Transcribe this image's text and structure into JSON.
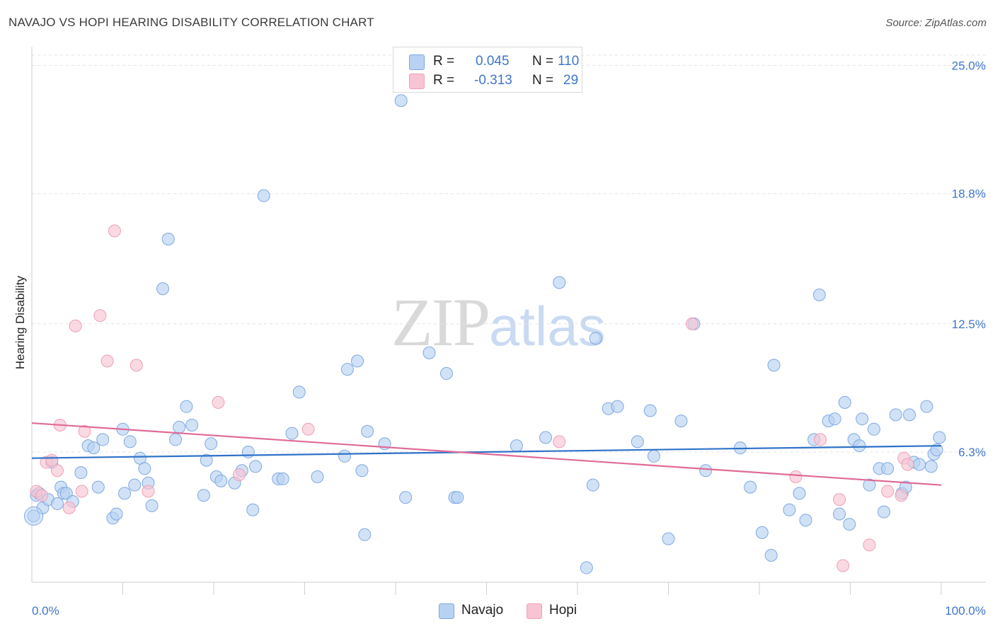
{
  "title": "NAVAJO VS HOPI HEARING DISABILITY CORRELATION CHART",
  "source": "Source: ZipAtlas.com",
  "watermark": {
    "zip": "ZIP",
    "atlas": "atlas"
  },
  "legend": {
    "navajo": {
      "r_label": "R =",
      "r_value": "0.045",
      "n_label": "N =",
      "n_value": "110"
    },
    "hopi": {
      "r_label": "R =",
      "r_value": "-0.313",
      "n_label": "N =",
      "n_value": "29"
    }
  },
  "bottom_legend": {
    "navajo": "Navajo",
    "hopi": "Hopi"
  },
  "colors": {
    "navajo_fill": "#b9d2f3",
    "navajo_stroke": "#7fa8e0",
    "navajo_line": "#2f72c9",
    "hopi_fill": "#f8c4d3",
    "hopi_stroke": "#eda0b6",
    "hopi_line": "#e06b97",
    "grid": "#e3e3e3",
    "tick_text": "#3e76c9"
  },
  "chart_data": {
    "type": "scatter",
    "title": "NAVAJO VS HOPI HEARING DISABILITY CORRELATION CHART",
    "xlabel": "",
    "ylabel": "Hearing Disability",
    "x_tick_labels": [
      "0.0%",
      "100.0%"
    ],
    "y_tick_labels": [
      "6.3%",
      "12.5%",
      "18.8%",
      "25.0%"
    ],
    "y_ticks": [
      6.3,
      12.5,
      18.8,
      25.0
    ],
    "xlim": [
      0,
      100
    ],
    "ylim": [
      0,
      25.5
    ],
    "grid": true,
    "legend_position": "top-center",
    "series": [
      {
        "name": "Navajo",
        "r": 0.045,
        "n": 110,
        "trend": [
          [
            0,
            6.0
          ],
          [
            100,
            6.6
          ]
        ],
        "points": [
          [
            0.2,
            3.2
          ],
          [
            0.5,
            4.2
          ],
          [
            0.8,
            4.3
          ],
          [
            1.2,
            3.6
          ],
          [
            1.8,
            4.0
          ],
          [
            2.2,
            5.8
          ],
          [
            2.8,
            3.8
          ],
          [
            3.2,
            4.6
          ],
          [
            3.5,
            4.3
          ],
          [
            3.8,
            4.3
          ],
          [
            4.5,
            3.9
          ],
          [
            5.4,
            5.3
          ],
          [
            6.2,
            6.6
          ],
          [
            6.8,
            6.5
          ],
          [
            7.3,
            4.6
          ],
          [
            7.8,
            6.9
          ],
          [
            8.9,
            3.1
          ],
          [
            9.3,
            3.3
          ],
          [
            10.0,
            7.4
          ],
          [
            10.2,
            4.3
          ],
          [
            10.8,
            6.8
          ],
          [
            11.3,
            4.7
          ],
          [
            11.9,
            6.0
          ],
          [
            12.4,
            5.5
          ],
          [
            12.8,
            4.8
          ],
          [
            13.2,
            3.7
          ],
          [
            14.4,
            14.2
          ],
          [
            15.0,
            16.6
          ],
          [
            15.8,
            6.9
          ],
          [
            16.2,
            7.5
          ],
          [
            17.0,
            8.5
          ],
          [
            17.6,
            7.6
          ],
          [
            18.9,
            4.2
          ],
          [
            19.2,
            5.9
          ],
          [
            19.7,
            6.7
          ],
          [
            20.3,
            5.1
          ],
          [
            20.8,
            4.9
          ],
          [
            22.3,
            4.8
          ],
          [
            23.1,
            5.4
          ],
          [
            23.8,
            6.3
          ],
          [
            24.3,
            3.5
          ],
          [
            24.6,
            5.6
          ],
          [
            25.5,
            18.7
          ],
          [
            27.1,
            5.0
          ],
          [
            27.6,
            5.0
          ],
          [
            28.6,
            7.2
          ],
          [
            29.4,
            9.2
          ],
          [
            31.4,
            5.1
          ],
          [
            34.4,
            6.1
          ],
          [
            34.7,
            10.3
          ],
          [
            35.8,
            10.7
          ],
          [
            36.3,
            5.4
          ],
          [
            36.6,
            2.3
          ],
          [
            36.9,
            7.3
          ],
          [
            38.8,
            6.7
          ],
          [
            40.6,
            23.3
          ],
          [
            41.1,
            4.1
          ],
          [
            43.7,
            11.1
          ],
          [
            45.6,
            10.1
          ],
          [
            46.5,
            4.1
          ],
          [
            46.8,
            4.1
          ],
          [
            53.3,
            6.6
          ],
          [
            56.5,
            7.0
          ],
          [
            58.0,
            14.5
          ],
          [
            61.0,
            0.7
          ],
          [
            61.7,
            4.7
          ],
          [
            62.0,
            11.8
          ],
          [
            63.4,
            8.4
          ],
          [
            64.4,
            8.5
          ],
          [
            66.6,
            6.8
          ],
          [
            68.0,
            8.3
          ],
          [
            68.4,
            6.1
          ],
          [
            70.0,
            2.1
          ],
          [
            71.4,
            7.8
          ],
          [
            72.8,
            12.5
          ],
          [
            74.1,
            5.4
          ],
          [
            77.9,
            6.5
          ],
          [
            79.0,
            4.6
          ],
          [
            80.3,
            2.4
          ],
          [
            81.3,
            1.3
          ],
          [
            81.6,
            10.5
          ],
          [
            83.3,
            3.5
          ],
          [
            84.4,
            4.3
          ],
          [
            85.1,
            3.0
          ],
          [
            86.0,
            6.9
          ],
          [
            86.6,
            13.9
          ],
          [
            87.6,
            7.8
          ],
          [
            88.3,
            7.9
          ],
          [
            88.8,
            3.3
          ],
          [
            89.4,
            8.7
          ],
          [
            89.9,
            2.8
          ],
          [
            90.4,
            6.9
          ],
          [
            91.0,
            6.6
          ],
          [
            91.3,
            7.9
          ],
          [
            92.1,
            4.7
          ],
          [
            92.6,
            7.4
          ],
          [
            93.2,
            5.5
          ],
          [
            93.7,
            3.4
          ],
          [
            94.1,
            5.5
          ],
          [
            95.0,
            8.1
          ],
          [
            95.7,
            4.3
          ],
          [
            96.1,
            4.6
          ],
          [
            96.5,
            8.1
          ],
          [
            97.0,
            5.8
          ],
          [
            97.6,
            5.7
          ],
          [
            98.4,
            8.5
          ],
          [
            98.9,
            5.6
          ],
          [
            99.2,
            6.2
          ],
          [
            99.5,
            6.4
          ],
          [
            99.8,
            7.0
          ]
        ]
      },
      {
        "name": "Hopi",
        "r": -0.313,
        "n": 29,
        "trend": [
          [
            0,
            7.7
          ],
          [
            100,
            4.7
          ]
        ],
        "points": [
          [
            0.5,
            4.4
          ],
          [
            1.1,
            4.2
          ],
          [
            1.6,
            5.8
          ],
          [
            2.2,
            5.9
          ],
          [
            2.8,
            5.4
          ],
          [
            3.1,
            7.6
          ],
          [
            4.1,
            3.6
          ],
          [
            4.8,
            12.4
          ],
          [
            5.5,
            4.4
          ],
          [
            5.8,
            7.3
          ],
          [
            7.5,
            12.9
          ],
          [
            8.3,
            10.7
          ],
          [
            9.1,
            17.0
          ],
          [
            11.5,
            10.5
          ],
          [
            12.8,
            4.4
          ],
          [
            20.5,
            8.7
          ],
          [
            22.8,
            5.2
          ],
          [
            30.4,
            7.4
          ],
          [
            58.0,
            6.8
          ],
          [
            72.6,
            12.5
          ],
          [
            84.0,
            5.1
          ],
          [
            86.7,
            6.9
          ],
          [
            88.8,
            4.0
          ],
          [
            89.2,
            0.8
          ],
          [
            92.1,
            1.8
          ],
          [
            94.1,
            4.4
          ],
          [
            95.6,
            4.2
          ],
          [
            95.9,
            6.0
          ],
          [
            96.3,
            5.7
          ]
        ]
      }
    ]
  }
}
